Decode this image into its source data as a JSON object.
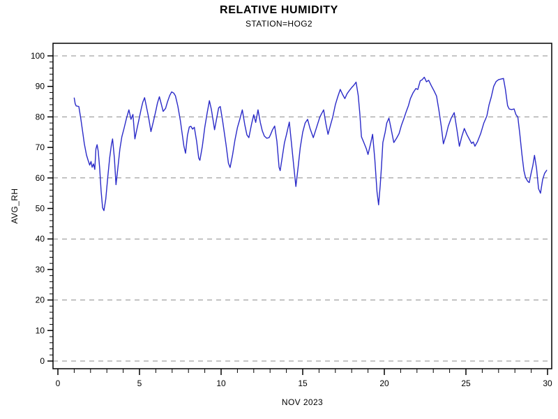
{
  "chart_data": {
    "type": "line",
    "title": "RELATIVE HUMIDITY",
    "subtitle": "STATION=HOG2",
    "xlabel": "NOV 2023",
    "ylabel": "AVG_RH",
    "xlim": [
      0,
      30
    ],
    "ylim": [
      0,
      100
    ],
    "x_major_ticks": [
      0,
      5,
      10,
      15,
      20,
      25,
      30
    ],
    "x_minor_tick_step": 1,
    "y_major_ticks": [
      0,
      10,
      20,
      30,
      40,
      50,
      60,
      70,
      80,
      90,
      100
    ],
    "y_minor_tick_step": 2,
    "y_gridlines": [
      0,
      20,
      40,
      60,
      80,
      100
    ],
    "gridline_style": "dashed",
    "legend_position": "none",
    "colors": {
      "line": "#2a2ac8",
      "grid": "#8c8c8c",
      "axis": "#000000",
      "background": "#ffffff",
      "text": "#000000"
    },
    "series": [
      {
        "name": "AVG_RH",
        "x": [
          1.0,
          1.06,
          1.12,
          1.28,
          1.4,
          1.5,
          1.62,
          1.75,
          1.85,
          1.95,
          2.03,
          2.1,
          2.18,
          2.26,
          2.33,
          2.4,
          2.47,
          2.56,
          2.65,
          2.74,
          2.82,
          2.93,
          3.05,
          3.17,
          3.28,
          3.35,
          3.46,
          3.56,
          3.68,
          3.8,
          3.92,
          4.05,
          4.2,
          4.35,
          4.48,
          4.6,
          4.72,
          4.82,
          4.96,
          5.1,
          5.2,
          5.31,
          5.42,
          5.55,
          5.7,
          5.85,
          6.0,
          6.1,
          6.22,
          6.32,
          6.45,
          6.6,
          6.72,
          6.85,
          6.97,
          7.1,
          7.2,
          7.35,
          7.5,
          7.62,
          7.72,
          7.82,
          7.94,
          8.05,
          8.15,
          8.25,
          8.36,
          8.5,
          8.63,
          8.7,
          8.85,
          9.0,
          9.15,
          9.28,
          9.4,
          9.5,
          9.6,
          9.72,
          9.85,
          9.95,
          10.1,
          10.3,
          10.45,
          10.55,
          10.7,
          10.85,
          11.0,
          11.15,
          11.3,
          11.45,
          11.58,
          11.7,
          11.87,
          12.0,
          12.12,
          12.26,
          12.4,
          12.52,
          12.65,
          12.8,
          12.94,
          13.02,
          13.15,
          13.28,
          13.42,
          13.55,
          13.62,
          13.75,
          13.88,
          14.0,
          14.18,
          14.3,
          14.45,
          14.58,
          14.72,
          14.85,
          15.0,
          15.15,
          15.3,
          15.45,
          15.65,
          15.85,
          16.05,
          16.28,
          16.42,
          16.55,
          16.7,
          16.84,
          17.0,
          17.14,
          17.3,
          17.45,
          17.58,
          17.72,
          17.88,
          18.0,
          18.12,
          18.27,
          18.4,
          18.5,
          18.6,
          18.75,
          18.9,
          19.0,
          19.15,
          19.28,
          19.42,
          19.55,
          19.65,
          19.75,
          19.83,
          19.91,
          20.05,
          20.15,
          20.28,
          20.42,
          20.58,
          20.75,
          20.9,
          21.05,
          21.2,
          21.32,
          21.48,
          21.6,
          21.75,
          21.93,
          22.05,
          22.2,
          22.32,
          22.45,
          22.58,
          22.72,
          22.88,
          23.05,
          23.2,
          23.35,
          23.5,
          23.62,
          23.78,
          23.92,
          24.1,
          24.28,
          24.45,
          24.6,
          24.75,
          24.9,
          25.05,
          25.2,
          25.35,
          25.45,
          25.55,
          25.7,
          25.9,
          26.1,
          26.28,
          26.42,
          26.55,
          26.7,
          26.85,
          27.0,
          27.15,
          27.3,
          27.42,
          27.55,
          27.65,
          27.8,
          27.95,
          28.07,
          28.18,
          28.3,
          28.43,
          28.55,
          28.65,
          28.78,
          28.88,
          29.0,
          29.1,
          29.2,
          29.33,
          29.45,
          29.57,
          29.7,
          29.82,
          29.95
        ],
        "y": [
          86.2,
          84.3,
          83.6,
          83.4,
          79.5,
          75.8,
          71.2,
          67.5,
          65.8,
          64.2,
          65.4,
          63.5,
          64.6,
          62.8,
          69.5,
          70.9,
          68.8,
          63.2,
          55.6,
          50.2,
          49.3,
          53.0,
          60.0,
          66.5,
          71.0,
          72.8,
          66.5,
          57.8,
          63.5,
          69.5,
          73.5,
          76.2,
          79.5,
          82.3,
          79.2,
          80.8,
          72.8,
          75.5,
          79.0,
          82.5,
          84.8,
          86.3,
          83.5,
          80.0,
          75.2,
          78.5,
          82.0,
          84.5,
          86.6,
          84.5,
          81.8,
          82.8,
          85.0,
          87.0,
          88.2,
          87.8,
          86.9,
          83.5,
          78.9,
          74.3,
          70.5,
          68.1,
          74.0,
          76.7,
          76.9,
          76.0,
          76.6,
          72.0,
          66.5,
          65.8,
          70.4,
          76.6,
          81.4,
          85.3,
          82.5,
          79.2,
          75.8,
          79.2,
          83.0,
          83.4,
          78.5,
          71.0,
          64.8,
          63.4,
          67.5,
          72.5,
          76.5,
          79.3,
          82.3,
          77.5,
          74.1,
          73.2,
          77.8,
          80.7,
          78.2,
          82.3,
          78.2,
          75.5,
          73.7,
          73.0,
          73.2,
          74.1,
          75.8,
          77.0,
          72.0,
          63.5,
          62.4,
          67.0,
          71.5,
          74.1,
          78.3,
          72.0,
          64.0,
          57.2,
          63.5,
          70.0,
          75.0,
          78.0,
          79.2,
          76.2,
          73.2,
          76.6,
          80.0,
          82.3,
          77.8,
          74.3,
          77.3,
          80.0,
          84.0,
          86.5,
          89.0,
          87.3,
          86.0,
          87.6,
          88.8,
          89.6,
          90.3,
          91.4,
          87.0,
          81.0,
          73.5,
          71.5,
          69.5,
          67.7,
          71.0,
          74.3,
          66.0,
          55.5,
          51.2,
          57.5,
          64.0,
          71.6,
          75.0,
          78.0,
          79.6,
          76.0,
          71.6,
          73.0,
          74.5,
          77.3,
          79.5,
          81.4,
          83.7,
          86.0,
          87.8,
          89.3,
          89.0,
          91.8,
          92.2,
          93.0,
          91.5,
          92.0,
          90.2,
          88.5,
          86.8,
          82.0,
          76.5,
          71.2,
          74.0,
          77.0,
          79.6,
          81.4,
          75.8,
          70.4,
          73.6,
          76.2,
          74.3,
          72.8,
          71.3,
          71.8,
          70.4,
          71.8,
          74.5,
          78.0,
          80.3,
          84.0,
          86.5,
          90.0,
          91.6,
          92.2,
          92.4,
          92.6,
          89.0,
          83.7,
          82.6,
          82.4,
          82.6,
          80.7,
          80.0,
          74.5,
          67.7,
          62.4,
          60.2,
          58.9,
          58.5,
          61.7,
          64.0,
          67.4,
          63.0,
          56.5,
          55.0,
          59.5,
          61.5,
          62.5
        ]
      }
    ]
  }
}
